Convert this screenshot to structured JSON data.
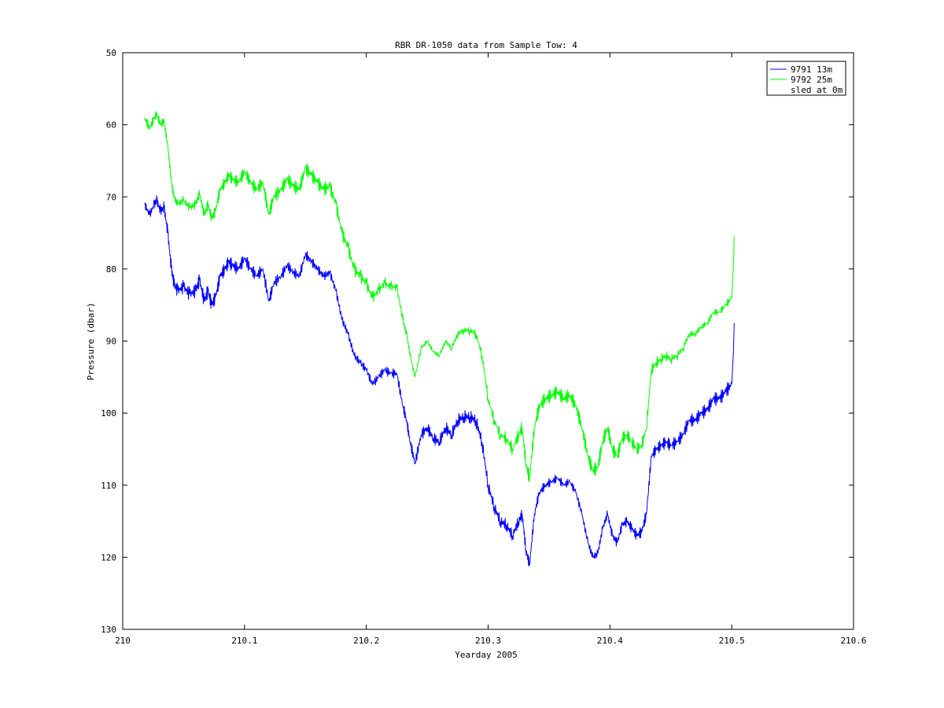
{
  "chart_data": {
    "type": "line",
    "title": "RBR DR-1050 data from Sample Tow: 4",
    "xlabel": "Yearday 2005",
    "ylabel": "Pressure (dbar)",
    "xlim": [
      210,
      210.6
    ],
    "ylim": [
      50,
      130
    ],
    "y_reversed": true,
    "grid": false,
    "legend_position": "top-right",
    "x_ticks": [
      "210",
      "210.1",
      "210.2",
      "210.3",
      "210.4",
      "210.5",
      "210.6"
    ],
    "y_ticks": [
      "50",
      "60",
      "70",
      "80",
      "90",
      "100",
      "110",
      "120",
      "130"
    ],
    "series": [
      {
        "name": "9791 13m",
        "color": "#0000ff",
        "x": [
          210.018,
          210.022,
          210.026,
          210.028,
          210.031,
          210.034,
          210.037,
          210.04,
          210.042,
          210.045,
          210.05,
          210.055,
          210.06,
          210.063,
          210.067,
          210.07,
          210.073,
          210.076,
          210.08,
          210.084,
          210.087,
          210.09,
          210.095,
          210.1,
          210.105,
          210.11,
          210.115,
          210.12,
          210.124,
          210.13,
          210.135,
          210.14,
          210.145,
          210.15,
          210.155,
          210.16,
          210.165,
          210.17,
          210.175,
          210.18,
          210.185,
          210.19,
          210.195,
          210.2,
          210.205,
          210.21,
          210.215,
          210.22,
          210.225,
          210.23,
          210.233,
          210.236,
          210.24,
          210.245,
          210.25,
          210.255,
          210.26,
          210.265,
          210.27,
          210.275,
          210.28,
          210.285,
          210.29,
          210.295,
          210.3,
          210.305,
          210.31,
          210.315,
          210.32,
          210.325,
          210.328,
          210.331,
          210.334,
          210.338,
          210.342,
          210.347,
          210.352,
          210.357,
          210.362,
          210.367,
          210.372,
          210.377,
          210.382,
          210.386,
          210.39,
          210.394,
          210.398,
          210.402,
          210.406,
          210.41,
          210.414,
          210.418,
          210.422,
          210.426,
          210.43,
          210.434,
          210.438,
          210.442,
          210.446,
          210.45,
          210.455,
          210.46,
          210.465,
          210.47,
          210.475,
          210.48,
          210.485,
          210.49,
          210.495,
          210.5,
          210.5015,
          210.502
        ],
        "values": [
          71,
          72.5,
          71,
          70.5,
          72,
          71.5,
          75,
          80,
          82,
          83,
          82.5,
          83.5,
          83,
          81.5,
          84.5,
          83,
          85,
          84,
          81,
          80,
          79,
          79.5,
          80,
          78.5,
          80,
          81,
          80,
          84.5,
          82,
          81,
          79.5,
          80.5,
          81,
          78,
          79,
          80,
          81,
          80.5,
          83,
          87,
          89,
          92,
          93,
          94,
          96,
          95,
          94,
          94.5,
          94.5,
          99,
          101,
          104,
          107,
          103,
          102,
          103.5,
          104,
          102,
          103,
          101,
          100.5,
          100.5,
          101,
          104,
          110,
          113,
          115,
          115.5,
          117,
          115,
          114,
          119,
          121,
          114,
          111,
          110,
          109.5,
          109,
          110,
          109.5,
          111,
          114,
          118,
          120,
          119.5,
          116,
          114,
          117,
          118,
          115.5,
          115,
          116,
          117,
          116.5,
          114,
          106,
          105,
          104.5,
          104,
          104.5,
          104,
          103,
          101,
          101,
          100,
          99.5,
          98,
          98,
          97,
          96,
          91,
          87.5
        ]
      },
      {
        "name": "9792 25m",
        "color": "#00ff00",
        "x": [
          210.018,
          210.022,
          210.026,
          210.028,
          210.031,
          210.034,
          210.037,
          210.04,
          210.042,
          210.045,
          210.05,
          210.055,
          210.06,
          210.063,
          210.067,
          210.07,
          210.073,
          210.076,
          210.08,
          210.084,
          210.087,
          210.09,
          210.095,
          210.1,
          210.105,
          210.11,
          210.115,
          210.12,
          210.124,
          210.13,
          210.135,
          210.14,
          210.145,
          210.15,
          210.155,
          210.16,
          210.165,
          210.17,
          210.175,
          210.18,
          210.185,
          210.19,
          210.195,
          210.2,
          210.205,
          210.21,
          210.215,
          210.22,
          210.225,
          210.23,
          210.233,
          210.236,
          210.24,
          210.245,
          210.25,
          210.255,
          210.26,
          210.265,
          210.27,
          210.275,
          210.28,
          210.285,
          210.29,
          210.295,
          210.3,
          210.305,
          210.31,
          210.315,
          210.32,
          210.325,
          210.328,
          210.331,
          210.334,
          210.338,
          210.342,
          210.347,
          210.352,
          210.357,
          210.362,
          210.367,
          210.372,
          210.377,
          210.382,
          210.386,
          210.39,
          210.394,
          210.398,
          210.402,
          210.406,
          210.41,
          210.414,
          210.418,
          210.422,
          210.426,
          210.43,
          210.434,
          210.438,
          210.442,
          210.446,
          210.45,
          210.455,
          210.46,
          210.465,
          210.47,
          210.475,
          210.48,
          210.485,
          210.49,
          210.495,
          210.5,
          210.5015,
          210.502
        ],
        "values": [
          59,
          60.5,
          59,
          58.5,
          60,
          59.5,
          63,
          68,
          70,
          71,
          70.5,
          71.5,
          71,
          69.5,
          72.5,
          71,
          73,
          72,
          69,
          68,
          67,
          67.5,
          68,
          66.5,
          68,
          69,
          68,
          72.5,
          70,
          69,
          67.5,
          68.5,
          69,
          66,
          67,
          68,
          69,
          68.5,
          71,
          75,
          77,
          80,
          81,
          82,
          84,
          83,
          82,
          82.5,
          82.5,
          87,
          89,
          92,
          95,
          91,
          90,
          91.5,
          92,
          90,
          91,
          89,
          88.5,
          88.5,
          89,
          92,
          98,
          101,
          103,
          103.5,
          105,
          103,
          102,
          107,
          109,
          102,
          99,
          98,
          97.5,
          97,
          98,
          97.5,
          99,
          102,
          106,
          108,
          107.5,
          104,
          102,
          105,
          106,
          103.5,
          103,
          104,
          105,
          104.5,
          102,
          94,
          93,
          92.5,
          92,
          92.5,
          92,
          91,
          89,
          89,
          88,
          87.5,
          86,
          86,
          85,
          84,
          79,
          75.5
        ]
      },
      {
        "name": "sled at 0m",
        "color": "#ff0000",
        "x": [],
        "values": []
      }
    ]
  }
}
